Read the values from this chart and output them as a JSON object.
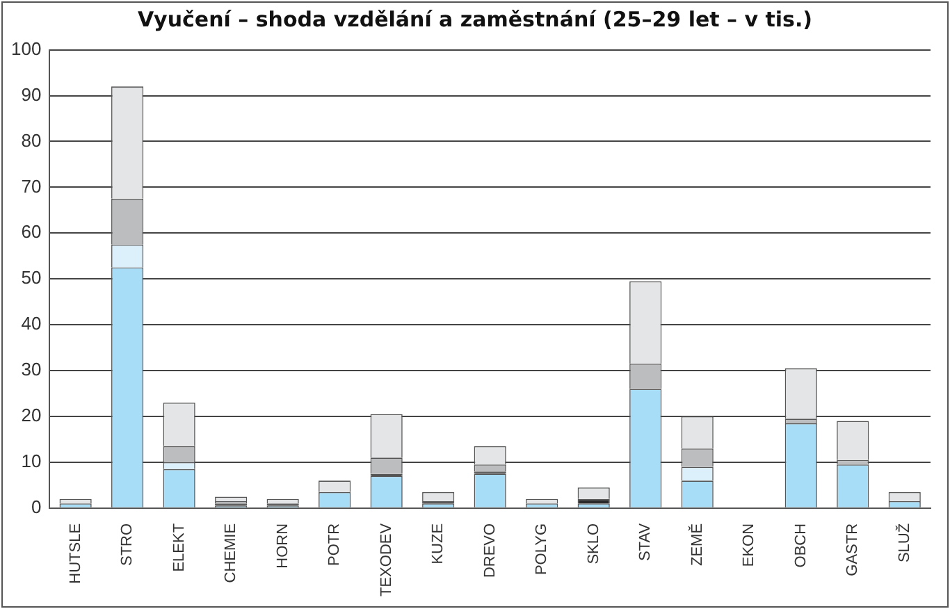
{
  "chart_data": {
    "type": "bar",
    "title": "Vyučení – shoda vzdělání a zaměstnání (25–29 let – v tis.)",
    "stacked": true,
    "grid": "y",
    "legend": false,
    "categories": [
      "HUTSLE",
      "STRO",
      "ELEKT",
      "CHEMIE",
      "HORN",
      "POTR",
      "TEXODEV",
      "KUZE",
      "DREVO",
      "POLYG",
      "SKLO",
      "STAV",
      "ZEMĚ",
      "EKON",
      "OBCH",
      "GASTR",
      "SLUŽ"
    ],
    "ylim": [
      0,
      100
    ],
    "yticks": [
      0,
      10,
      20,
      30,
      40,
      50,
      60,
      70,
      80,
      90,
      100
    ],
    "series": [
      {
        "color": "#a8ddf7",
        "values": [
          1,
          52.5,
          8.5,
          0.5,
          0.5,
          3.5,
          7,
          1,
          7.5,
          1,
          1,
          26,
          6,
          0,
          18.5,
          9.5,
          1.5
        ]
      },
      {
        "color": "#dcf0fb",
        "values": [
          0,
          5,
          1.5,
          0,
          0,
          0,
          0,
          0,
          0,
          0,
          0,
          0,
          3,
          0,
          0,
          0,
          0
        ]
      },
      {
        "color": "#2a2a2a",
        "values": [
          0,
          0,
          0,
          0.5,
          0.5,
          0,
          0.5,
          0.5,
          0.5,
          0,
          1,
          0,
          0,
          0,
          0,
          0,
          0
        ]
      },
      {
        "color": "#bcbdbf",
        "values": [
          0,
          10,
          3.5,
          0.5,
          0,
          0,
          3.5,
          0,
          1.5,
          0,
          0,
          5.5,
          4,
          0,
          1,
          1,
          0
        ]
      },
      {
        "color": "#e4e5e6",
        "values": [
          1,
          24.5,
          9.5,
          1,
          1,
          2.5,
          9.5,
          2,
          4,
          1,
          2.5,
          18,
          7,
          0,
          11,
          8.5,
          2
        ]
      }
    ]
  }
}
